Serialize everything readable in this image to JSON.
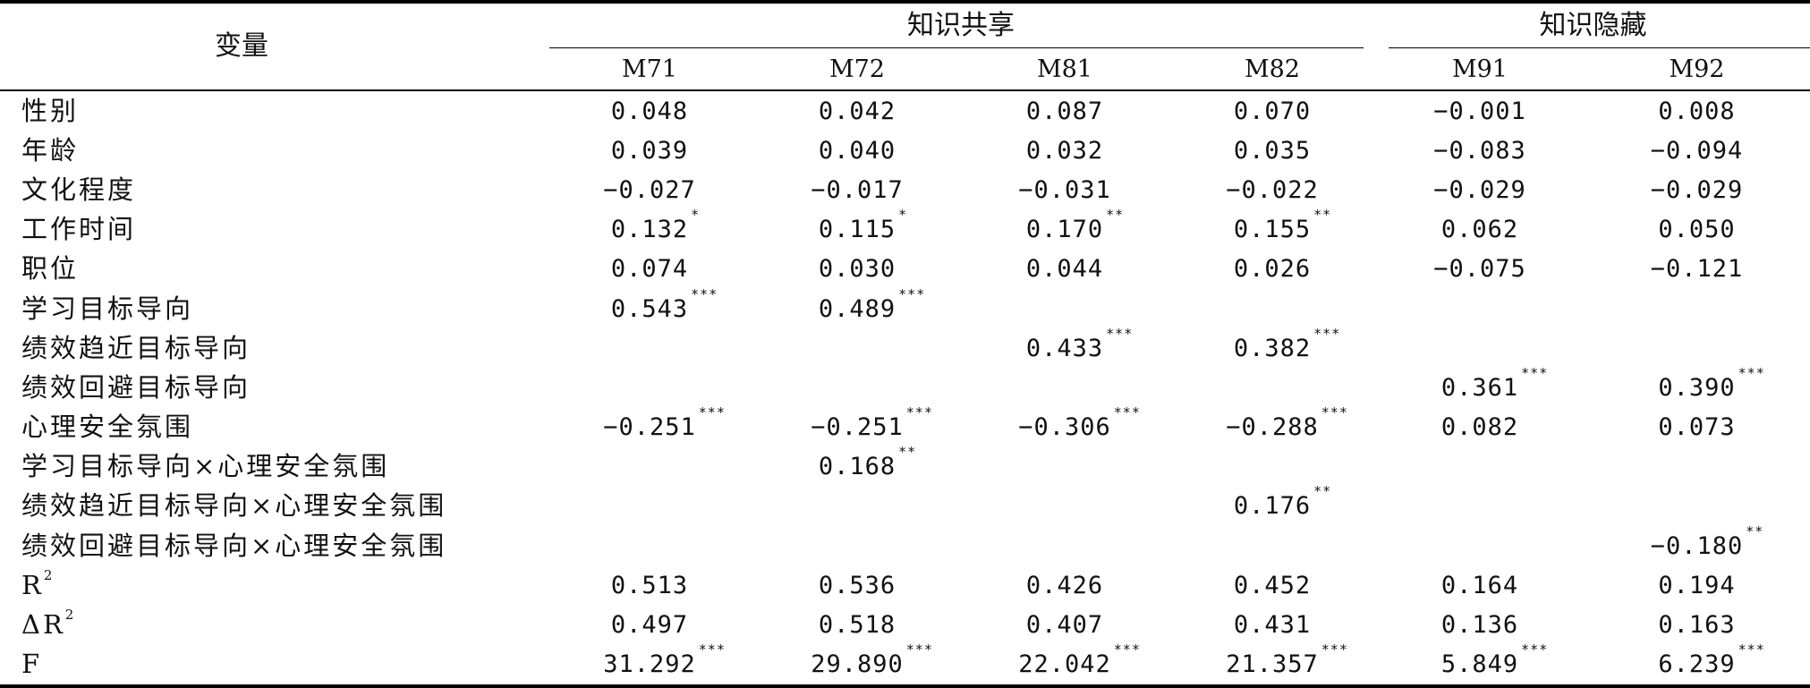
{
  "header": {
    "variable_label": "变量",
    "groups": [
      {
        "label": "知识共享"
      },
      {
        "label": "知识隐藏"
      }
    ],
    "models": [
      "M71",
      "M72",
      "M81",
      "M82",
      "M91",
      "M92"
    ]
  },
  "rows": [
    {
      "label": "性别",
      "cells": [
        {
          "v": "0.048",
          "s": ""
        },
        {
          "v": "0.042",
          "s": ""
        },
        {
          "v": "0.087",
          "s": ""
        },
        {
          "v": "0.070",
          "s": ""
        },
        {
          "v": "−0.001",
          "s": ""
        },
        {
          "v": "0.008",
          "s": ""
        }
      ]
    },
    {
      "label": "年龄",
      "cells": [
        {
          "v": "0.039",
          "s": ""
        },
        {
          "v": "0.040",
          "s": ""
        },
        {
          "v": "0.032",
          "s": ""
        },
        {
          "v": "0.035",
          "s": ""
        },
        {
          "v": "−0.083",
          "s": ""
        },
        {
          "v": "−0.094",
          "s": ""
        }
      ]
    },
    {
      "label": "文化程度",
      "cells": [
        {
          "v": "−0.027",
          "s": ""
        },
        {
          "v": "−0.017",
          "s": ""
        },
        {
          "v": "−0.031",
          "s": ""
        },
        {
          "v": "−0.022",
          "s": ""
        },
        {
          "v": "−0.029",
          "s": ""
        },
        {
          "v": "−0.029",
          "s": ""
        }
      ]
    },
    {
      "label": "工作时间",
      "cells": [
        {
          "v": "0.132",
          "s": "*"
        },
        {
          "v": "0.115",
          "s": "*"
        },
        {
          "v": "0.170",
          "s": "**"
        },
        {
          "v": "0.155",
          "s": "**"
        },
        {
          "v": "0.062",
          "s": ""
        },
        {
          "v": "0.050",
          "s": ""
        }
      ]
    },
    {
      "label": "职位",
      "cells": [
        {
          "v": "0.074",
          "s": ""
        },
        {
          "v": "0.030",
          "s": ""
        },
        {
          "v": "0.044",
          "s": ""
        },
        {
          "v": "0.026",
          "s": ""
        },
        {
          "v": "−0.075",
          "s": ""
        },
        {
          "v": "−0.121",
          "s": ""
        }
      ]
    },
    {
      "label": "学习目标导向",
      "cells": [
        {
          "v": "0.543",
          "s": "***"
        },
        {
          "v": "0.489",
          "s": "***"
        },
        {
          "v": "",
          "s": ""
        },
        {
          "v": "",
          "s": ""
        },
        {
          "v": "",
          "s": ""
        },
        {
          "v": "",
          "s": ""
        }
      ]
    },
    {
      "label": "绩效趋近目标导向",
      "cells": [
        {
          "v": "",
          "s": ""
        },
        {
          "v": "",
          "s": ""
        },
        {
          "v": "0.433",
          "s": "***"
        },
        {
          "v": "0.382",
          "s": "***"
        },
        {
          "v": "",
          "s": ""
        },
        {
          "v": "",
          "s": ""
        }
      ]
    },
    {
      "label": "绩效回避目标导向",
      "cells": [
        {
          "v": "",
          "s": ""
        },
        {
          "v": "",
          "s": ""
        },
        {
          "v": "",
          "s": ""
        },
        {
          "v": "",
          "s": ""
        },
        {
          "v": "0.361",
          "s": "***"
        },
        {
          "v": "0.390",
          "s": "***"
        }
      ]
    },
    {
      "label": "心理安全氛围",
      "cells": [
        {
          "v": "−0.251",
          "s": "***"
        },
        {
          "v": "−0.251",
          "s": "***"
        },
        {
          "v": "−0.306",
          "s": "***"
        },
        {
          "v": "−0.288",
          "s": "***"
        },
        {
          "v": "0.082",
          "s": ""
        },
        {
          "v": "0.073",
          "s": ""
        }
      ]
    },
    {
      "label": "学习目标导向×心理安全氛围",
      "cells": [
        {
          "v": "",
          "s": ""
        },
        {
          "v": "0.168",
          "s": "**"
        },
        {
          "v": "",
          "s": ""
        },
        {
          "v": "",
          "s": ""
        },
        {
          "v": "",
          "s": ""
        },
        {
          "v": "",
          "s": ""
        }
      ]
    },
    {
      "label": "绩效趋近目标导向×心理安全氛围",
      "cells": [
        {
          "v": "",
          "s": ""
        },
        {
          "v": "",
          "s": ""
        },
        {
          "v": "",
          "s": ""
        },
        {
          "v": "0.176",
          "s": "**"
        },
        {
          "v": "",
          "s": ""
        },
        {
          "v": "",
          "s": ""
        }
      ]
    },
    {
      "label": "绩效回避目标导向×心理安全氛围",
      "cells": [
        {
          "v": "",
          "s": ""
        },
        {
          "v": "",
          "s": ""
        },
        {
          "v": "",
          "s": ""
        },
        {
          "v": "",
          "s": ""
        },
        {
          "v": "",
          "s": ""
        },
        {
          "v": "−0.180",
          "s": "**"
        }
      ]
    }
  ],
  "stats": {
    "r2": {
      "label": "R",
      "sup": "2",
      "cells": [
        {
          "v": "0.513",
          "s": ""
        },
        {
          "v": "0.536",
          "s": ""
        },
        {
          "v": "0.426",
          "s": ""
        },
        {
          "v": "0.452",
          "s": ""
        },
        {
          "v": "0.164",
          "s": ""
        },
        {
          "v": "0.194",
          "s": ""
        }
      ]
    },
    "delta_r2": {
      "label": "ΔR",
      "sup": "2",
      "cells": [
        {
          "v": "0.497",
          "s": ""
        },
        {
          "v": "0.518",
          "s": ""
        },
        {
          "v": "0.407",
          "s": ""
        },
        {
          "v": "0.431",
          "s": ""
        },
        {
          "v": "0.136",
          "s": ""
        },
        {
          "v": "0.163",
          "s": ""
        }
      ]
    },
    "f": {
      "label": "F",
      "sup": "",
      "cells": [
        {
          "v": "31.292",
          "s": "***"
        },
        {
          "v": "29.890",
          "s": "***"
        },
        {
          "v": "22.042",
          "s": "***"
        },
        {
          "v": "21.357",
          "s": "***"
        },
        {
          "v": "5.849",
          "s": "***"
        },
        {
          "v": "6.239",
          "s": "***"
        }
      ]
    }
  }
}
